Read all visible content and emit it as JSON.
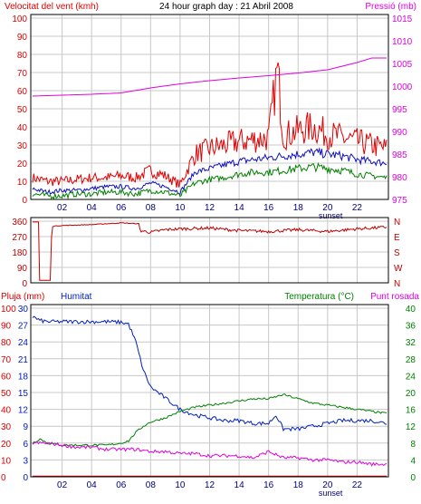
{
  "header": {
    "left_title": "Velocitat del vent (kmh)",
    "center_title": "24 hour graph day : 21 Abril 2008",
    "right_title": "Pressió (mb)"
  },
  "colors": {
    "background": "#ffffff",
    "grid": "#c8c8c8",
    "wind": "#e00000",
    "wind_avg": "#1010c0",
    "wind_green": "#008000",
    "pressure": "#e000e0",
    "direction": "#c00000",
    "humidity": "#0020c0",
    "temperature": "#008000",
    "dewpoint": "#e000e0",
    "rain": "#e00000",
    "hour_labels": "#000080"
  },
  "x_axis": {
    "hour_labels": [
      "02",
      "04",
      "06",
      "08",
      "10",
      "12",
      "14",
      "16",
      "18",
      "20",
      "22"
    ],
    "sunset_label": "sunset"
  },
  "panel3_labels": {
    "left_label": "Pluja (mm)",
    "humidity_label": "Humitat",
    "temperature_label": "Temperatura (°C)",
    "dewpoint_label": "Punt rosada"
  },
  "chart_data": [
    {
      "type": "line",
      "x_range_hours": [
        0,
        24
      ],
      "left_axis": {
        "ylim": [
          0,
          100
        ],
        "ticks": [
          "0",
          "10",
          "20",
          "30",
          "40",
          "50",
          "60",
          "70",
          "80",
          "90",
          "100"
        ]
      },
      "right_axis": {
        "ylim": [
          975,
          1015
        ],
        "ticks": [
          "975",
          "980",
          "985",
          "990",
          "995",
          "1000",
          "1005",
          "1010",
          "1015"
        ]
      },
      "grid": true,
      "series": [
        {
          "name": "Velocitat del vent (kmh)",
          "x": [
            0,
            1,
            2,
            3,
            4,
            5,
            6,
            7,
            8,
            9,
            10,
            11,
            12,
            13,
            14,
            15,
            16,
            16.6,
            17,
            18,
            19,
            20,
            21,
            22,
            23,
            24
          ],
          "values": [
            12,
            10,
            10,
            11,
            12,
            12,
            13,
            12,
            16,
            13,
            8,
            25,
            28,
            30,
            32,
            33,
            34,
            72,
            35,
            38,
            40,
            36,
            34,
            32,
            30,
            28
          ]
        },
        {
          "name": "",
          "x": [
            0,
            1,
            2,
            3,
            4,
            5,
            6,
            7,
            8,
            9,
            10,
            11,
            12,
            13,
            14,
            15,
            16,
            17,
            18,
            19,
            20,
            21,
            22,
            23,
            24
          ],
          "values": [
            6,
            4,
            5,
            5,
            6,
            7,
            7,
            6,
            9,
            7,
            4,
            15,
            17,
            19,
            21,
            22,
            23,
            24,
            25,
            26,
            25,
            24,
            22,
            21,
            20
          ]
        },
        {
          "name": "",
          "x": [
            0,
            1,
            2,
            3,
            4,
            5,
            6,
            7,
            8,
            9,
            10,
            11,
            12,
            13,
            14,
            15,
            16,
            17,
            18,
            19,
            20,
            21,
            22,
            23,
            24
          ],
          "values": [
            3,
            2,
            2,
            3,
            3,
            4,
            4,
            3,
            5,
            4,
            2,
            9,
            11,
            12,
            14,
            15,
            15,
            16,
            17,
            18,
            17,
            16,
            14,
            13,
            12
          ]
        },
        {
          "name": "Pressió (mb)",
          "axis": "right",
          "x": [
            0,
            2,
            4,
            6,
            8,
            10,
            12,
            14,
            16,
            18,
            20,
            22,
            23,
            24
          ],
          "values": [
            997.8,
            998.0,
            998.2,
            998.5,
            999.6,
            1000.5,
            1001.2,
            1001.8,
            1002.3,
            1002.9,
            1003.6,
            1005.2,
            1006.2,
            1006.2
          ]
        }
      ]
    },
    {
      "type": "line",
      "x_range_hours": [
        0,
        24
      ],
      "left_axis": {
        "ylim": [
          0,
          360
        ],
        "ticks": [
          "0",
          "90",
          "180",
          "270",
          "360"
        ]
      },
      "right_axis": {
        "ticks": [
          "N",
          "E",
          "S",
          "W",
          "N"
        ]
      },
      "grid": true,
      "series": [
        {
          "name": "",
          "x": [
            0,
            0.4,
            0.45,
            1.2,
            1.3,
            2,
            4,
            6,
            7.2,
            7.3,
            8,
            9,
            10,
            12,
            14,
            16,
            18,
            20,
            22,
            24
          ],
          "values": [
            355,
            355,
            15,
            15,
            330,
            335,
            340,
            350,
            345,
            305,
            295,
            310,
            315,
            320,
            305,
            300,
            310,
            300,
            315,
            325
          ]
        }
      ]
    },
    {
      "type": "line",
      "x_range_hours": [
        0,
        24
      ],
      "axes": {
        "rain": {
          "ylim": [
            0,
            100
          ],
          "ticks": [
            "0",
            "10",
            "20",
            "30",
            "40",
            "50",
            "60",
            "70",
            "80",
            "90",
            "100"
          ]
        },
        "humidity": {
          "ylim": [
            0,
            30
          ],
          "ticks": [
            "0",
            "3",
            "6",
            "9",
            "12",
            "15",
            "18",
            "21",
            "24",
            "27",
            "30"
          ]
        },
        "temperature": {
          "ylim": [
            0,
            40
          ],
          "ticks": [
            "0",
            "4",
            "8",
            "12",
            "16",
            "20",
            "24",
            "28",
            "32",
            "36",
            "40"
          ]
        }
      },
      "grid": true,
      "series": [
        {
          "name": "Humitat",
          "axis": "humidity",
          "x": [
            0,
            0.5,
            1,
            2,
            3,
            4,
            5,
            6,
            6.5,
            7,
            7.5,
            8,
            9,
            10,
            11,
            12,
            13,
            14,
            15,
            16,
            16.5,
            17,
            18,
            19,
            20,
            21,
            22,
            23,
            24
          ],
          "values": [
            28.5,
            27.8,
            27.6,
            27.6,
            27.6,
            27.6,
            27.6,
            27.5,
            27.2,
            24,
            19,
            16,
            14,
            12,
            11,
            10.5,
            10,
            10,
            9.5,
            9.5,
            11,
            8.5,
            8.5,
            9,
            9.5,
            10,
            10,
            10,
            9.5
          ]
        },
        {
          "name": "Temperatura (°C)",
          "axis": "temperature",
          "x": [
            0,
            0.5,
            1,
            2,
            3,
            4,
            5,
            6,
            6.5,
            7,
            7.5,
            8,
            9,
            10,
            11,
            12,
            13,
            14,
            15,
            16,
            17,
            18,
            19,
            20,
            21,
            22,
            23,
            24
          ],
          "values": [
            8,
            9,
            8,
            7.5,
            7.5,
            7.5,
            7.5,
            8,
            8.5,
            10.5,
            12,
            13,
            14,
            15.5,
            16.5,
            17,
            17.5,
            18,
            18.5,
            18.5,
            19.5,
            18.5,
            17.5,
            17,
            16.5,
            16,
            15.5,
            15
          ]
        },
        {
          "name": "Punt rosada",
          "axis": "temperature",
          "x": [
            0,
            1,
            2,
            3,
            4,
            5,
            6,
            7,
            8,
            9,
            10,
            11,
            12,
            13,
            14,
            15,
            16,
            17,
            18,
            19,
            20,
            21,
            22,
            23,
            24
          ],
          "values": [
            8,
            8,
            7.5,
            7,
            7,
            6.5,
            6.5,
            6.5,
            6,
            6,
            5.5,
            5.5,
            5,
            5,
            5,
            4.5,
            6,
            4.5,
            4.5,
            4,
            4,
            3.5,
            3.5,
            3,
            3
          ]
        },
        {
          "name": "Pluja (mm)",
          "axis": "rain",
          "x": [
            0,
            24
          ],
          "values": [
            0,
            0
          ]
        }
      ]
    }
  ]
}
